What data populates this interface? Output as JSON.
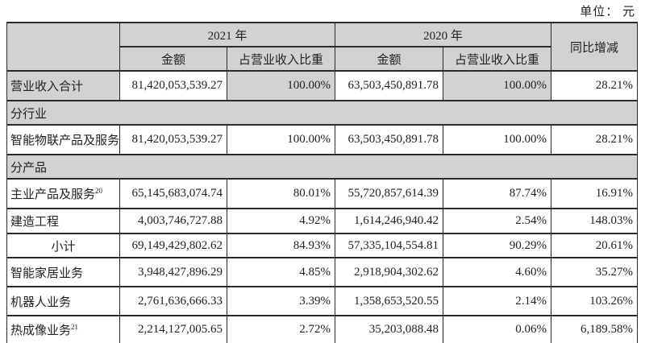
{
  "unit_label": "单位： 元",
  "table": {
    "header": {
      "year_2021": "2021 年",
      "year_2020": "2020 年",
      "yoy": "同比增减",
      "amount": "金额",
      "ratio": "占营业收入比重"
    },
    "rows": [
      {
        "type": "data",
        "label": "营业收入合计",
        "highlight": true,
        "amount_2021": "81,420,053,539.27",
        "ratio_2021": "100.00%",
        "amount_2020": "63,503,450,891.78",
        "ratio_2020": "100.00%",
        "yoy": "28.21%"
      },
      {
        "type": "section",
        "label": "分行业"
      },
      {
        "type": "data",
        "label": "智能物联产品及服务",
        "amount_2021": "81,420,053,539.27",
        "ratio_2021": "100.00%",
        "amount_2020": "63,503,450,891.78",
        "ratio_2020": "100.00%",
        "yoy": "28.21%"
      },
      {
        "type": "section",
        "label": "分产品"
      },
      {
        "type": "data",
        "label": "主业产品及服务",
        "sup": "20",
        "amount_2021": "65,145,683,074.74",
        "ratio_2021": "80.01%",
        "amount_2020": "55,720,857,614.39",
        "ratio_2020": "87.74%",
        "yoy": "16.91%"
      },
      {
        "type": "data",
        "label": "建造工程",
        "amount_2021": "4,003,746,727.88",
        "ratio_2021": "4.92%",
        "amount_2020": "1,614,246,940.42",
        "ratio_2020": "2.54%",
        "yoy": "148.03%"
      },
      {
        "type": "data",
        "label": "小计",
        "center": true,
        "amount_2021": "69,149,429,802.62",
        "ratio_2021": "84.93%",
        "amount_2020": "57,335,104,554.81",
        "ratio_2020": "90.29%",
        "yoy": "20.61%"
      },
      {
        "type": "data",
        "label": "智能家居业务",
        "amount_2021": "3,948,427,896.29",
        "ratio_2021": "4.85%",
        "amount_2020": "2,918,904,302.62",
        "ratio_2020": "4.60%",
        "yoy": "35.27%"
      },
      {
        "type": "data",
        "label": "机器人业务",
        "amount_2021": "2,761,636,666.33",
        "ratio_2021": "3.39%",
        "amount_2020": "1,358,653,520.55",
        "ratio_2020": "2.14%",
        "yoy": "103.26%"
      },
      {
        "type": "data",
        "label": "热成像业务",
        "sup": "21",
        "amount_2021": "2,214,127,005.65",
        "ratio_2021": "2.72%",
        "amount_2020": "35,203,088.48",
        "ratio_2020": "0.06%",
        "yoy": "6,189.58%"
      }
    ]
  }
}
